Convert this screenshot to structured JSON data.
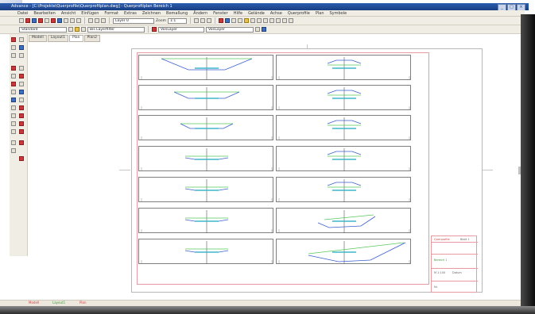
{
  "window": {
    "title": "Advance - [C:\\Projekte\\Querprofile\\Querprofilplan.dwg] - Querprofilplan Bereich 1",
    "buttons": [
      "_",
      "□",
      "×"
    ]
  },
  "menu": {
    "items": [
      "Datei",
      "Bearbeiten",
      "Ansicht",
      "Einfügen",
      "Format",
      "Extras",
      "Zeichnen",
      "Bemaßung",
      "Ändern",
      "Fenster",
      "Hilfe",
      "Gelände",
      "Achse",
      "Querprofile",
      "Plan",
      "Symbole"
    ]
  },
  "toolbar1": {
    "scale_select": "Layer 0",
    "zoom_label": "Zoom",
    "zoom_value": "1:1"
  },
  "toolbar2": {
    "style_select": "Standard",
    "layer_select": "Bis Layerfilter",
    "color_select": "VonLayer",
    "linetype_select": "VonLayer"
  },
  "tabs": [
    "Modell",
    "Layout1",
    "Plan",
    "Plan2"
  ],
  "drawing": {
    "title_block": {
      "row1": "Querprofile",
      "row2": "Blatt 1",
      "row3": "Bereich 1",
      "row4": "M 1:100",
      "row5": "Datum",
      "row6": "Nr."
    }
  },
  "status": {
    "tabs": [
      "Modell",
      "Layout1",
      "Plan"
    ]
  },
  "colors": {
    "profile_green": "#59c85d",
    "profile_blue": "#3a5fd0",
    "profile_cyan": "#3fb6c7",
    "frame_red": "#e79aa0",
    "titlebar_blue": "#1a3f82"
  }
}
